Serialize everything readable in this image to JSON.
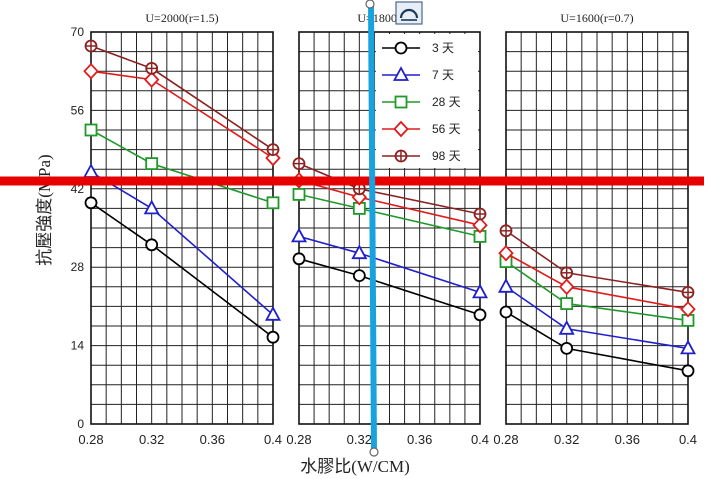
{
  "chart_data": {
    "type": "line",
    "ylabel": "抗壓強度(MPa)",
    "xlabel": "水膠比(W/CM)",
    "ylim": [
      0,
      70
    ],
    "yticks": [
      "0",
      "14",
      "28",
      "42",
      "56",
      "70"
    ],
    "xticks": [
      "0.28",
      "0.32",
      "0.36",
      "0.4"
    ],
    "xlim": [
      0.28,
      0.4
    ],
    "grid": true,
    "legend_placement": "top-right of middle panel",
    "colors": {
      "3天": "#000000",
      "7天": "#1f1fcc",
      "28天": "#1f9a2a",
      "56天": "#e11b1b",
      "98天": "#8b2222"
    },
    "legend": [
      {
        "label": "3 天",
        "key": "3天",
        "marker": "circle"
      },
      {
        "label": "7 天",
        "key": "7天",
        "marker": "triangle"
      },
      {
        "label": "28 天",
        "key": "28天",
        "marker": "square"
      },
      {
        "label": "56 天",
        "key": "56天",
        "marker": "diamond"
      },
      {
        "label": "98 天",
        "key": "98天",
        "marker": "circle-plus"
      }
    ],
    "panels": [
      {
        "title": "U=2000(r=1.5)",
        "x": [
          0.28,
          0.32,
          0.4
        ],
        "series": [
          {
            "name": "3 天",
            "key": "3天",
            "values": [
              39.5,
              32,
              15.5
            ]
          },
          {
            "name": "7 天",
            "key": "7天",
            "values": [
              45,
              38.5,
              19.5
            ]
          },
          {
            "name": "28 天",
            "key": "28天",
            "values": [
              52.5,
              46.5,
              39.5
            ]
          },
          {
            "name": "56 天",
            "key": "56天",
            "values": [
              63,
              61.5,
              47.5
            ]
          },
          {
            "name": "98 天",
            "key": "98天",
            "values": [
              67.5,
              63.5,
              49
            ]
          }
        ]
      },
      {
        "title": "U=1800(r=1)",
        "x": [
          0.28,
          0.32,
          0.4
        ],
        "series": [
          {
            "name": "3 天",
            "key": "3天",
            "values": [
              29.5,
              26.5,
              19.5
            ]
          },
          {
            "name": "7 天",
            "key": "7天",
            "values": [
              33.5,
              30.5,
              23.5
            ]
          },
          {
            "name": "28 天",
            "key": "28天",
            "values": [
              41,
              38.5,
              33.5
            ]
          },
          {
            "name": "56 天",
            "key": "56天",
            "values": [
              43.5,
              40.5,
              35.5
            ]
          },
          {
            "name": "98 天",
            "key": "98天",
            "values": [
              46.5,
              42,
              37.5
            ]
          }
        ]
      },
      {
        "title": "U=1600(r=0.7)",
        "x": [
          0.28,
          0.32,
          0.4
        ],
        "series": [
          {
            "name": "3 天",
            "key": "3天",
            "values": [
              20,
              13.5,
              9.5
            ]
          },
          {
            "name": "7 天",
            "key": "7天",
            "values": [
              24.5,
              17,
              13.5
            ]
          },
          {
            "name": "28 天",
            "key": "28天",
            "values": [
              29,
              21.5,
              18.5
            ]
          },
          {
            "name": "56 天",
            "key": "56天",
            "values": [
              30.5,
              24.5,
              20.5
            ]
          },
          {
            "name": "98 天",
            "key": "98天",
            "values": [
              34.5,
              27,
              23.5
            ]
          }
        ]
      }
    ]
  },
  "overlay": {
    "red_line_color": "#e60000",
    "blue_line_color": "#18a3e0"
  }
}
